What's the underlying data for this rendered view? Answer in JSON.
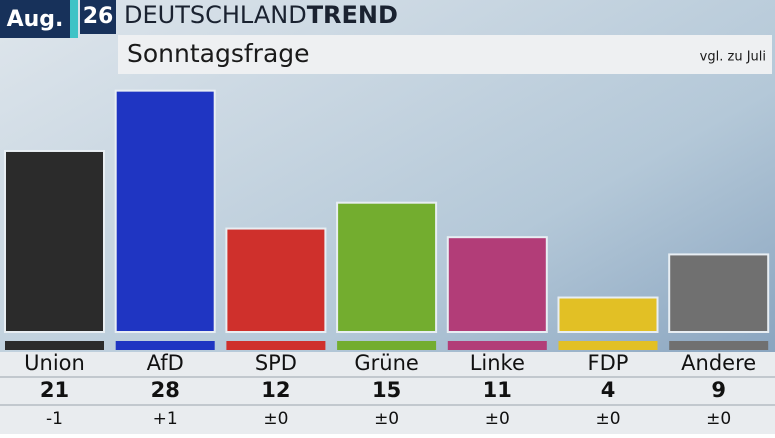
{
  "header": {
    "month": "Aug.",
    "week": "26",
    "brand": "DEUTSCHLAND",
    "brand_bold": "TREND",
    "subtitle": "Sonntagsfrage",
    "note": "vgl. zu Juli"
  },
  "chart_data": {
    "type": "bar",
    "categories": [
      "Union",
      "AfD",
      "SPD",
      "Grüne",
      "Linke",
      "FDP",
      "Andere"
    ],
    "values": [
      21,
      28,
      12,
      15,
      11,
      4,
      9
    ],
    "colors": [
      "#2b2b2b",
      "#1f35c2",
      "#cf302c",
      "#73ad2f",
      "#b23d78",
      "#e2c025",
      "#707070"
    ],
    "changes": [
      "-1",
      "+1",
      "±0",
      "±0",
      "±0",
      "±0",
      "±0"
    ]
  }
}
